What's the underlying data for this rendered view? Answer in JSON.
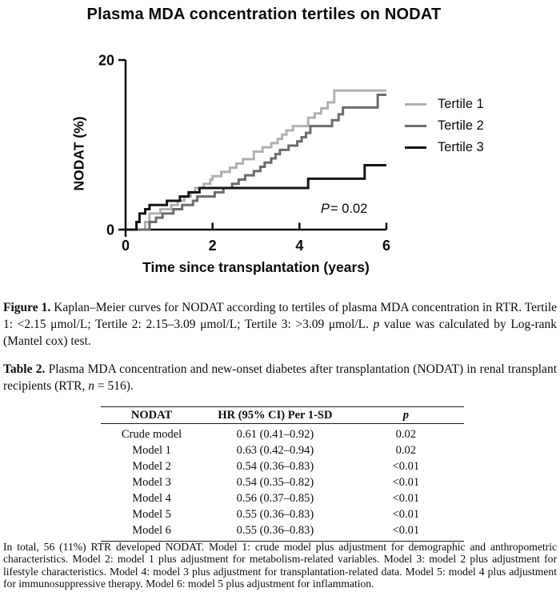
{
  "chart": {
    "title": "Plasma MDA concentration tertiles on NODAT",
    "x_axis_label": "Time since transplantation (years)",
    "y_axis_label": "NODAT (%)",
    "p_annotation": {
      "italic": "P",
      "rest": "= 0.02"
    },
    "legend": [
      "Tertile 1",
      "Tertile 2",
      "Tertile 3"
    ]
  },
  "chart_data": {
    "type": "line",
    "subtype": "kaplan_meier_step",
    "title": "Plasma MDA concentration tertiles on NODAT",
    "xlabel": "Time since transplantation (years)",
    "ylabel": "NODAT (%)",
    "xlim": [
      0,
      6
    ],
    "ylim": [
      0,
      20
    ],
    "x_ticks": [
      0,
      2,
      4,
      6
    ],
    "y_ticks": [
      0,
      20
    ],
    "grid": false,
    "legend_position": "right-of-plot",
    "annotation": "P= 0.02",
    "series": [
      {
        "name": "Tertile 1",
        "color": "#b1b1b1",
        "start": [
          0,
          0
        ],
        "end_x": 6,
        "events": [
          [
            0.45,
            0.9
          ],
          [
            0.55,
            1.9
          ],
          [
            0.8,
            2.4
          ],
          [
            1.05,
            2.9
          ],
          [
            1.2,
            3.4
          ],
          [
            1.35,
            3.9
          ],
          [
            1.5,
            4.4
          ],
          [
            1.6,
            4.9
          ],
          [
            1.8,
            5.4
          ],
          [
            1.95,
            5.9
          ],
          [
            2.0,
            6.3
          ],
          [
            2.2,
            6.8
          ],
          [
            2.4,
            7.3
          ],
          [
            2.55,
            7.8
          ],
          [
            2.7,
            8.3
          ],
          [
            2.95,
            9.2
          ],
          [
            3.15,
            9.7
          ],
          [
            3.35,
            10.2
          ],
          [
            3.5,
            10.7
          ],
          [
            3.6,
            11.2
          ],
          [
            3.7,
            11.7
          ],
          [
            3.85,
            12.2
          ],
          [
            4.2,
            13.2
          ],
          [
            4.35,
            13.7
          ],
          [
            4.5,
            14.3
          ],
          [
            4.65,
            15.0
          ],
          [
            4.8,
            16.4
          ]
        ]
      },
      {
        "name": "Tertile 2",
        "color": "#6d6d6d",
        "start": [
          0,
          0
        ],
        "end_x": 6,
        "events": [
          [
            0.55,
            0.9
          ],
          [
            0.7,
            1.4
          ],
          [
            0.85,
            1.9
          ],
          [
            1.1,
            2.4
          ],
          [
            1.3,
            2.9
          ],
          [
            1.55,
            3.4
          ],
          [
            1.65,
            3.9
          ],
          [
            2.05,
            4.4
          ],
          [
            2.25,
            4.9
          ],
          [
            2.45,
            5.4
          ],
          [
            2.6,
            5.9
          ],
          [
            2.75,
            6.4
          ],
          [
            2.95,
            6.9
          ],
          [
            3.1,
            7.4
          ],
          [
            3.2,
            7.9
          ],
          [
            3.35,
            8.4
          ],
          [
            3.45,
            8.9
          ],
          [
            3.55,
            9.4
          ],
          [
            3.75,
            9.9
          ],
          [
            3.95,
            10.4
          ],
          [
            4.05,
            10.9
          ],
          [
            4.15,
            11.4
          ],
          [
            4.25,
            12.2
          ],
          [
            4.75,
            12.9
          ],
          [
            4.9,
            13.6
          ],
          [
            5.0,
            14.4
          ],
          [
            5.8,
            15.9
          ]
        ]
      },
      {
        "name": "Tertile 3",
        "color": "#141414",
        "start": [
          0,
          0
        ],
        "end_x": 6,
        "events": [
          [
            0.25,
            0.9
          ],
          [
            0.32,
            1.9
          ],
          [
            0.45,
            2.4
          ],
          [
            0.55,
            2.9
          ],
          [
            0.95,
            3.4
          ],
          [
            1.25,
            3.9
          ],
          [
            1.45,
            4.4
          ],
          [
            1.7,
            4.9
          ],
          [
            4.2,
            6.0
          ],
          [
            5.5,
            7.6
          ]
        ]
      }
    ]
  },
  "figure_caption": {
    "label": "Figure 1.",
    "body_1": " Kaplan–Meier curves for NODAT according to tertiles of plasma MDA concentration in RTR. Tertile 1: <2.15 μmol/L; Tertile 2: 2.15–3.09 μmol/L; Tertile 3: >3.09 μmol/L. ",
    "italic_p": "p",
    "body_2": " value was calculated by Log-rank (Mantel cox) test."
  },
  "table_caption": {
    "label": "Table 2.",
    "body_1": " Plasma MDA concentration and new-onset diabetes after transplantation (NODAT) in renal transplant recipients (RTR, ",
    "italic_n": "n",
    "body_2": " = 516)."
  },
  "table": {
    "headers": [
      "NODAT",
      "HR (95% CI) Per 1-SD",
      "p"
    ],
    "rows": [
      [
        "Crude model",
        "0.61 (0.41–0.92)",
        "0.02"
      ],
      [
        "Model 1",
        "0.63 (0.42–0.94)",
        "0.02"
      ],
      [
        "Model 2",
        "0.54 (0.36–0.83)",
        "<0.01"
      ],
      [
        "Model 3",
        "0.54 (0.35–0.82)",
        "<0.01"
      ],
      [
        "Model 4",
        "0.56 (0.37–0.85)",
        "<0.01"
      ],
      [
        "Model 5",
        "0.55 (0.36–0.83)",
        "<0.01"
      ],
      [
        "Model 6",
        "0.55 (0.36–0.83)",
        "<0.01"
      ]
    ]
  },
  "footnote": {
    "text": "In total, 56 (11%) RTR developed NODAT. Model 1: crude model plus adjustment for demographic and anthropometric characteristics. Model 2: model 1 plus adjustment for metabolism-related variables. Model 3: model 2 plus adjustment for lifestyle characteristics. Model 4: model 3 plus adjustment for transplantation-related data. Model 5: model 4 plus adjustment for immunosuppressive therapy. Model 6: model 5 plus adjustment for inflammation."
  }
}
